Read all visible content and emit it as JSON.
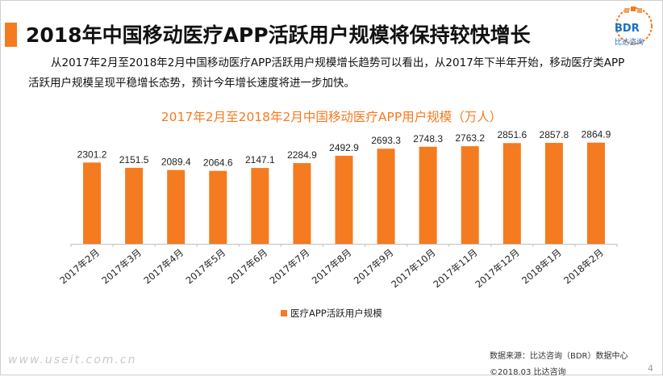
{
  "header": {
    "title": "2018年中国移动医疗APP活跃用户规模将保持较快增长",
    "logo_text": "BDR",
    "logo_sub": "比达咨询"
  },
  "description": "从2017年2月至2018年2月中国移动医疗APP活跃用户规模增长趋势可以看出，从2017年下半年开始，移动医疗类APP活跃用户规模呈现平稳增长态势，预计今年增长速度将进一步加快。",
  "chart_data": {
    "type": "bar",
    "title": "2017年2月至2018年2月中国移动医疗APP用户规模（万人）",
    "categories": [
      "2017年2月",
      "2017年3月",
      "2017年4月",
      "2017年5月",
      "2017年6月",
      "2017年7月",
      "2017年8月",
      "2017年9月",
      "2017年10月",
      "2017年11月",
      "2017年12月",
      "2018年1月",
      "2018年2月"
    ],
    "series": [
      {
        "name": "医疗APP活跃用户规模",
        "values": [
          2301.2,
          2151.5,
          2089.4,
          2064.6,
          2147.1,
          2284.9,
          2492.9,
          2693.3,
          2748.3,
          2763.2,
          2851.6,
          2857.8,
          2864.9
        ],
        "labels": [
          "2301.2",
          "2151.5",
          "2089.4",
          "2064.6",
          "2147.1",
          "2284.9",
          "2492.9",
          "2693.3",
          "2748.3",
          "2763.2",
          "2851.6",
          "2857.8",
          "2864.9"
        ]
      }
    ],
    "xlabel": "",
    "ylabel": "",
    "ylim": [
      0,
      3200
    ],
    "grid": false,
    "legend": "bottom-center",
    "colors": {
      "bar": "#f47b20",
      "axis": "#bfbfbf",
      "label": "#222222"
    }
  },
  "footer": {
    "source": "数据来源：比达咨询（BDR）数据中心",
    "copyright": "©2018.03  比达咨询",
    "page": "4",
    "watermark": "www.useit.com.cn"
  }
}
